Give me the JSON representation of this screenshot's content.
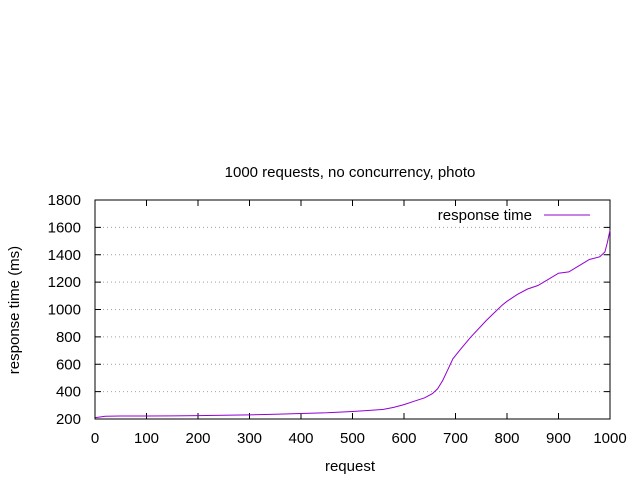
{
  "chart_data": {
    "type": "line",
    "title": "1000 requests, no concurrency, photo",
    "xlabel": "request",
    "ylabel": "response time (ms)",
    "xlim": [
      0,
      1000
    ],
    "ylim": [
      200,
      1800
    ],
    "xticks": [
      0,
      100,
      200,
      300,
      400,
      500,
      600,
      700,
      800,
      900,
      1000
    ],
    "yticks": [
      200,
      400,
      600,
      800,
      1000,
      1200,
      1400,
      1600,
      1800
    ],
    "grid": "horizontal dotted",
    "legend_position": "top-right",
    "series": [
      {
        "name": "response time",
        "color": "#9400d3",
        "x": [
          1,
          20,
          50,
          100,
          150,
          200,
          250,
          300,
          350,
          400,
          450,
          500,
          530,
          560,
          580,
          600,
          620,
          640,
          655,
          665,
          675,
          685,
          695,
          710,
          730,
          760,
          790,
          800,
          820,
          840,
          860,
          880,
          900,
          920,
          940,
          960,
          980,
          990,
          995,
          1000
        ],
        "y": [
          210,
          220,
          222,
          222,
          223,
          225,
          227,
          230,
          235,
          240,
          245,
          255,
          262,
          270,
          285,
          305,
          330,
          355,
          385,
          420,
          480,
          560,
          640,
          710,
          800,
          920,
          1030,
          1060,
          1110,
          1150,
          1175,
          1220,
          1265,
          1275,
          1320,
          1365,
          1385,
          1420,
          1490,
          1580
        ]
      }
    ]
  }
}
